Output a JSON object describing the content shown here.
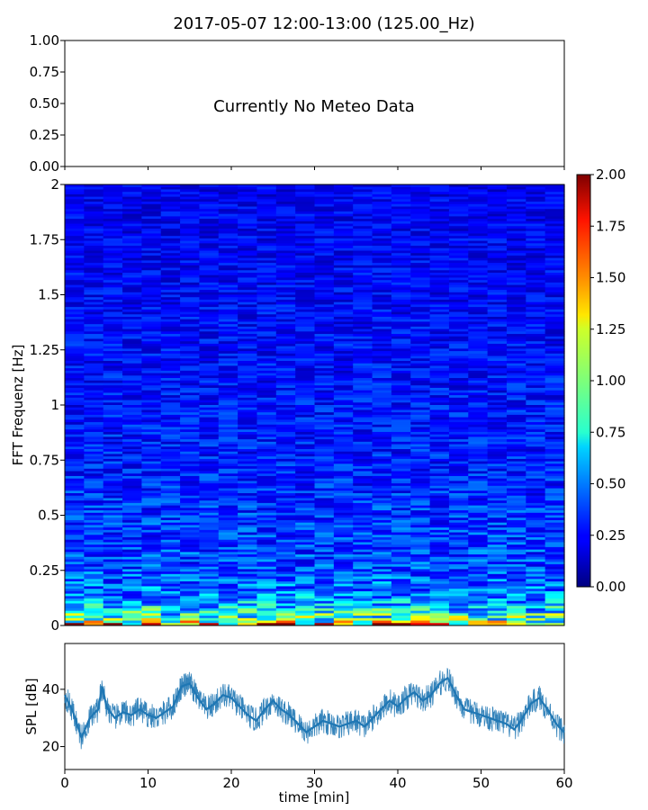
{
  "chart_data": [
    {
      "type": "line",
      "panel": "meteo",
      "title": "2017-05-07 12:00-13:00 (125.00_Hz)",
      "annotation": "Currently No Meteo Data",
      "ylim": [
        0,
        1
      ],
      "yticks": [
        0,
        0.25,
        0.5,
        0.75,
        1.0
      ],
      "yticklabels": [
        "0.00",
        "0.25",
        "0.50",
        "0.75",
        "1.00"
      ],
      "xlim": [
        0,
        60
      ],
      "series": []
    },
    {
      "type": "heatmap",
      "panel": "spectrogram",
      "ylabel": "FFT Frequenz [Hz]",
      "xlim": [
        0,
        60
      ],
      "ylim": [
        0,
        2
      ],
      "yticks": [
        0,
        0.25,
        0.5,
        0.75,
        1,
        1.25,
        1.5,
        1.75,
        2
      ],
      "yticklabels": [
        "0",
        "0.25",
        "0.5",
        "0.75",
        "1",
        "1.25",
        "1.5",
        "1.75",
        "2"
      ],
      "colormap": "jet",
      "colorbar": {
        "min": 0.0,
        "max": 2.0,
        "ticks": [
          0,
          0.25,
          0.5,
          0.75,
          1.0,
          1.25,
          1.5,
          1.75,
          2.0
        ],
        "ticklabels": [
          "0.00",
          "0.25",
          "0.50",
          "0.75",
          "1.00",
          "1.25",
          "1.50",
          "1.75",
          "2.00"
        ]
      },
      "level_profile": {
        "frequency_hz": [
          0,
          0.02,
          0.05,
          0.1,
          0.15,
          0.25,
          0.5,
          0.75,
          1.0,
          1.5,
          2.0
        ],
        "typical_value": [
          1.6,
          1.0,
          0.8,
          0.6,
          0.5,
          0.4,
          0.35,
          0.3,
          0.28,
          0.25,
          0.22
        ]
      }
    },
    {
      "type": "line",
      "panel": "spl",
      "xlabel": "time [min]",
      "ylabel": "SPL [dB]",
      "xlim": [
        0,
        60
      ],
      "ylim": [
        12,
        56
      ],
      "yticks": [
        20,
        40
      ],
      "yticklabels": [
        "20",
        "40"
      ],
      "xticks": [
        0,
        10,
        20,
        30,
        40,
        50,
        60
      ],
      "xticklabels": [
        "0",
        "10",
        "20",
        "30",
        "40",
        "50",
        "60"
      ],
      "line_color": "#1f77b4",
      "series": [
        {
          "x": [
            0,
            1,
            2,
            3,
            4,
            4.5,
            5,
            6,
            7,
            8,
            9,
            10,
            11,
            12,
            13,
            14,
            15,
            16,
            17,
            18,
            19,
            20,
            21,
            22,
            23,
            24,
            25,
            26,
            27,
            28,
            29,
            30,
            31,
            32,
            33,
            34,
            35,
            36,
            37,
            38,
            39,
            40,
            41,
            42,
            43,
            44,
            45,
            46,
            47,
            48,
            49,
            50,
            51,
            52,
            53,
            54,
            55,
            56,
            57,
            58,
            59,
            60
          ],
          "y": [
            38,
            32,
            23,
            30,
            33,
            41,
            34,
            30,
            32,
            31,
            33,
            31,
            30,
            32,
            34,
            41,
            42,
            37,
            33,
            35,
            38,
            37,
            34,
            31,
            29,
            33,
            36,
            33,
            31,
            28,
            25,
            27,
            29,
            28,
            27,
            28,
            29,
            27,
            30,
            33,
            36,
            34,
            37,
            39,
            36,
            38,
            42,
            44,
            38,
            33,
            32,
            31,
            30,
            29,
            28,
            26,
            30,
            35,
            37,
            33,
            28,
            25
          ]
        }
      ]
    }
  ]
}
